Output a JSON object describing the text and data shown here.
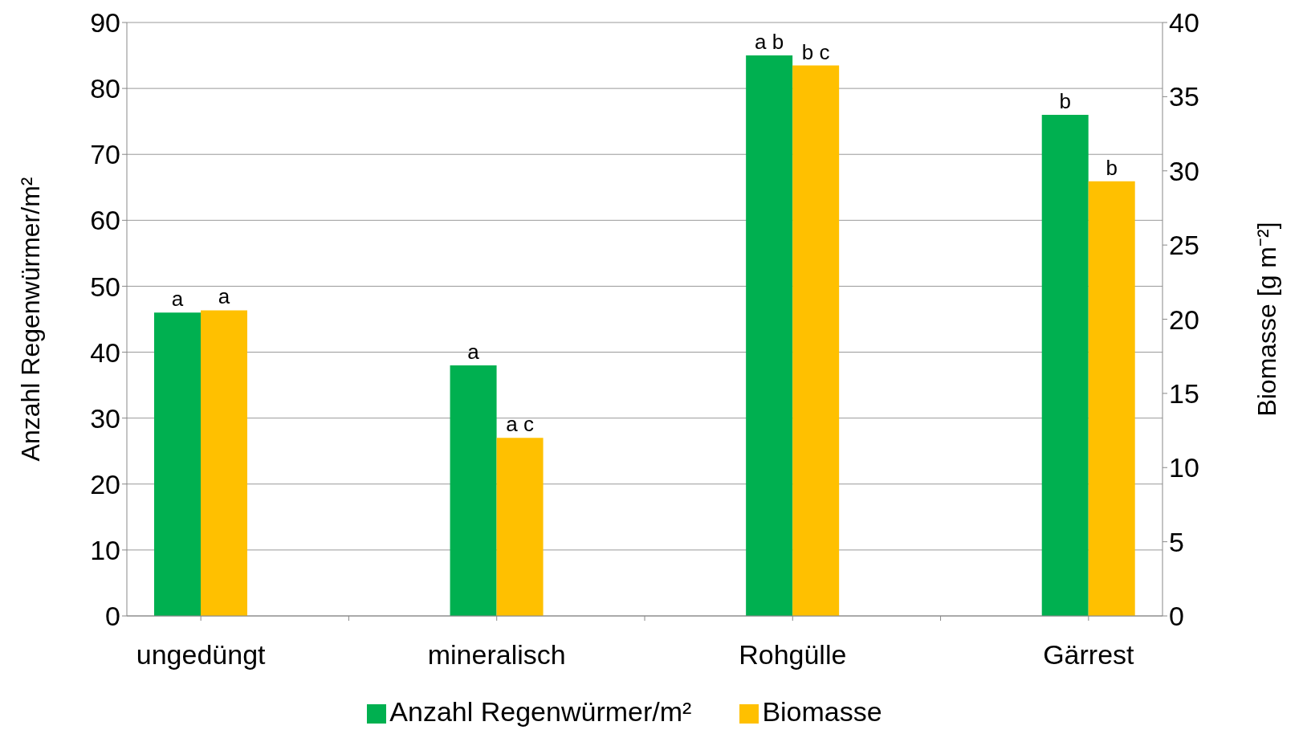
{
  "chart_data": {
    "type": "bar",
    "categories": [
      "ungedüngt",
      null,
      "mineralisch",
      null,
      "Rohgülle",
      null,
      "Gärrest"
    ],
    "series": [
      {
        "name": "Anzahl Regenwürmer/m²",
        "color": "#00b050",
        "values": [
          46,
          null,
          38,
          null,
          85,
          null,
          76
        ],
        "value_labels": [
          "a",
          null,
          "a",
          null,
          "a b",
          null,
          "b"
        ]
      },
      {
        "name": "Biomasse",
        "color": "#ffc000",
        "axis": "y2",
        "values": [
          20.6,
          null,
          12,
          null,
          37.1,
          null,
          29.3
        ],
        "value_labels": [
          "a",
          null,
          "a c",
          null,
          "b c",
          null,
          "b"
        ]
      }
    ],
    "ylabel": "Anzahl Regenwürmer/m²",
    "y2label": "Biomasse [g m⁻²]",
    "ylim": [
      0,
      90
    ],
    "yticks": [
      0,
      10,
      20,
      30,
      40,
      50,
      60,
      70,
      80,
      90
    ],
    "y2lim": [
      0,
      40
    ],
    "y2ticks": [
      0,
      5,
      10,
      15,
      20,
      25,
      30,
      35,
      40
    ],
    "grid": "y",
    "legend": "bottom"
  }
}
